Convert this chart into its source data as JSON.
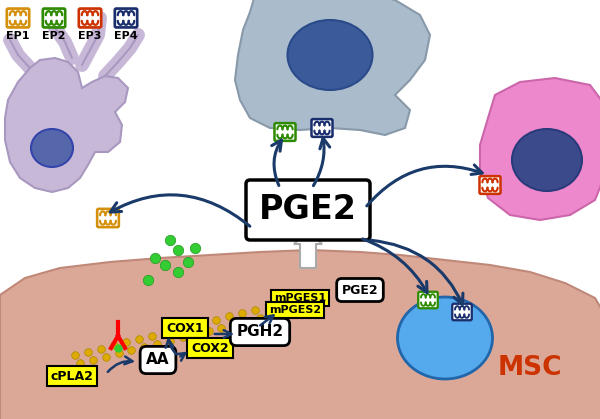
{
  "bg_color": "#ffffff",
  "ep_labels": [
    "EP1",
    "EP2",
    "EP3",
    "EP4"
  ],
  "ep_colors": [
    "#d4900a",
    "#2e8b00",
    "#cc3300",
    "#1a2e6e"
  ],
  "msc_color": "#dba898",
  "msc_edge_color": "#c08878",
  "msc_text_color": "#cc3300",
  "dendrite_color": "#c8b8d8",
  "dendrite_edge": "#a898c0",
  "dendrite_nucleus": "#6677bb",
  "top_cell_color": "#aabbcc",
  "top_cell_edge": "#8899aa",
  "top_cell_nucleus": "#4466aa",
  "pink_cell_color": "#ee88cc",
  "pink_cell_edge": "#cc66aa",
  "pink_cell_nucleus": "#4455aa",
  "msc_nucleus_color": "#55aaee",
  "msc_nucleus_edge": "#2266aa",
  "arrow_color": "#1a3a6a",
  "label_box_color": "#ffff00",
  "pge2_label": "PGE2",
  "aa_label": "AA",
  "pgh2_label": "PGH2",
  "cpla2_label": "cPLA2",
  "cox1_label": "COX1",
  "cox2_label": "COX2",
  "mpges1_label": "mPGES1",
  "mpges2_label": "mPGES2",
  "msc_label": "MSC",
  "green_dot_color": "#33cc33",
  "mem_color": "#ddaa00",
  "receptor_bg": "#ffffff"
}
